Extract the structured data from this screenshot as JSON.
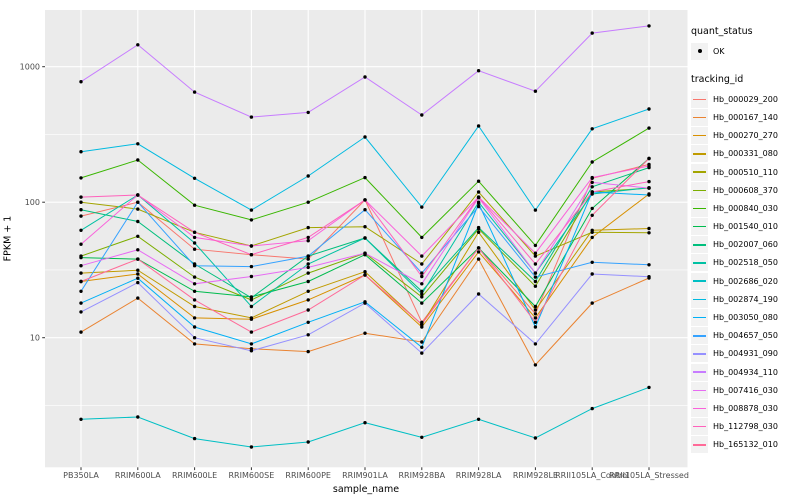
{
  "colors": {
    "panel_bg": "#EBEBEB",
    "grid": "#FFFFFF",
    "tick_mark": "#333333",
    "tick_text": "#4D4D4D",
    "point": "#000000",
    "legend_key_bg": "#F2F2F2"
  },
  "chart_data": {
    "type": "line",
    "title": "",
    "xlabel": "sample_name",
    "ylabel": "FPKM + 1",
    "y_scale": "log10",
    "y_ticks": [
      10,
      100,
      1000
    ],
    "y_minor_ticks": [
      3.162,
      31.62,
      316.2
    ],
    "ylim": [
      1.1,
      2620
    ],
    "grid": true,
    "legend_position": "right",
    "point_marker": "black dot (quant_status OK)",
    "categories": [
      "PB350LA",
      "RRIM600LA",
      "RRIM600LE",
      "RRIM600SE",
      "RRIM600PE",
      "RRIM901LA",
      "RRIM928BA",
      "RRIM928LA",
      "RRIM928LE",
      "RRII105LA_Control",
      "RRII105LA_Stressed"
    ],
    "series": [
      {
        "name": "Hb_000029_200",
        "color": "#F8766D",
        "values": [
          79,
          100,
          45,
          41,
          38,
          104,
          13,
          46,
          15,
          150,
          190
        ]
      },
      {
        "name": "Hb_000167_140",
        "color": "#EA8331",
        "values": [
          11,
          19.6,
          9,
          8.3,
          7.9,
          10.8,
          9.3,
          38,
          6.3,
          18,
          27.6
        ]
      },
      {
        "name": "Hb_000270_270",
        "color": "#D89000",
        "values": [
          26,
          29.5,
          14,
          13.7,
          19,
          29,
          12,
          43,
          14,
          55,
          115
        ]
      },
      {
        "name": "Hb_000331_080",
        "color": "#C09B00",
        "values": [
          30,
          31.5,
          17,
          14,
          22,
          30.7,
          12.5,
          60,
          16,
          62,
          64
        ]
      },
      {
        "name": "Hb_000510_110",
        "color": "#A3A500",
        "values": [
          100,
          89,
          60,
          47.5,
          65,
          66,
          35,
          119,
          40,
          60,
          59.5
        ]
      },
      {
        "name": "Hb_000608_370",
        "color": "#7CAE00",
        "values": [
          40,
          56,
          28,
          19,
          30,
          42,
          20,
          63.5,
          24,
          119,
          127
        ]
      },
      {
        "name": "Hb_000840_030",
        "color": "#39B600",
        "values": [
          151,
          205,
          95,
          74,
          100,
          152,
          55,
          143,
          48,
          198,
          352
        ]
      },
      {
        "name": "Hb_001540_010",
        "color": "#00BB4E",
        "values": [
          39,
          38,
          22,
          20,
          26,
          41,
          18,
          46,
          17,
          90,
          210
        ]
      },
      {
        "name": "Hb_002007_060",
        "color": "#00BF7D",
        "values": [
          88,
          72,
          35,
          19.7,
          40,
          54.4,
          22,
          65,
          26,
          130,
          180
        ]
      },
      {
        "name": "Hb_002518_050",
        "color": "#00C1A3",
        "values": [
          62,
          113,
          50,
          17,
          35,
          54.4,
          21,
          100,
          30,
          115,
          128
        ]
      },
      {
        "name": "Hb_002686_020",
        "color": "#00BFC4",
        "values": [
          2.5,
          2.6,
          1.8,
          1.56,
          1.7,
          2.36,
          1.84,
          2.5,
          1.82,
          3.0,
          4.3
        ]
      },
      {
        "name": "Hb_002874_190",
        "color": "#00BAE0",
        "values": [
          236,
          270,
          150,
          87.5,
          156,
          303,
          92,
          365,
          87.5,
          348,
          487
        ]
      },
      {
        "name": "Hb_003050_080",
        "color": "#00B0F6",
        "values": [
          18,
          27.5,
          12,
          9,
          13,
          18.4,
          8.5,
          98,
          12,
          119,
          113
        ]
      },
      {
        "name": "Hb_004657_050",
        "color": "#35A2FF",
        "values": [
          22,
          100,
          34,
          33.5,
          40,
          88,
          30,
          93,
          28,
          36,
          34.5
        ]
      },
      {
        "name": "Hb_004931_090",
        "color": "#9590FF",
        "values": [
          15.5,
          25.5,
          10,
          8,
          10.5,
          18,
          7.7,
          21,
          9,
          29.5,
          28.2
        ]
      },
      {
        "name": "Hb_004934_110",
        "color": "#C77CFF",
        "values": [
          775,
          1450,
          650,
          425,
          460,
          840,
          440,
          935,
          660,
          1770,
          2000
        ]
      },
      {
        "name": "Hb_007416_030",
        "color": "#E76BF3",
        "values": [
          34,
          44.5,
          25,
          28.3,
          33,
          42,
          25,
          108,
          30,
          140,
          127
        ]
      },
      {
        "name": "Hb_008878_030",
        "color": "#FA62DB",
        "values": [
          49,
          113,
          55,
          47.5,
          52,
          104,
          40,
          109,
          42,
          152,
          185
        ]
      },
      {
        "name": "Hb_112798_030",
        "color": "#FF62BC",
        "values": [
          109,
          113,
          60,
          41,
          55,
          104,
          28.3,
          109,
          35,
          119,
          142
        ]
      },
      {
        "name": "Hb_165132_010",
        "color": "#FF6A98",
        "values": [
          26,
          38,
          19,
          11,
          16,
          29,
          12.6,
          46,
          13,
          80,
          210
        ]
      }
    ],
    "legend": {
      "quant_status_title": "quant_status",
      "quant_status_items": [
        {
          "label": "OK",
          "marker": "point"
        }
      ],
      "tracking_id_title": "tracking_id"
    }
  }
}
